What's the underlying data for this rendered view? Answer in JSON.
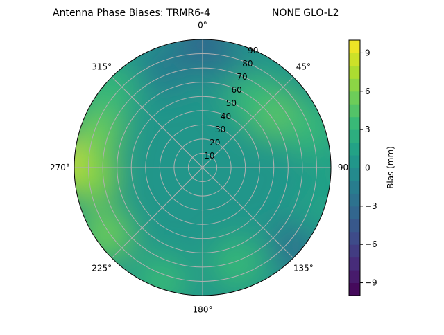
{
  "chart_data": {
    "type": "polar-contour",
    "title_left": "Antenna Phase Biases: TRMR6-4",
    "title_right": "NONE GLO-L2",
    "angular_ticks": [
      {
        "deg": 0,
        "label": "0°"
      },
      {
        "deg": 45,
        "label": "45°"
      },
      {
        "deg": 90,
        "label": "90°"
      },
      {
        "deg": 135,
        "label": "135°"
      },
      {
        "deg": 180,
        "label": "180°"
      },
      {
        "deg": 225,
        "label": "225°"
      },
      {
        "deg": 270,
        "label": "270°"
      },
      {
        "deg": 315,
        "label": "315°"
      }
    ],
    "angular_direction": "clockwise",
    "angular_zero": "north",
    "radial_ticks": [
      "10",
      "20",
      "30",
      "40",
      "50",
      "60",
      "70",
      "80",
      "90"
    ],
    "radial_range": [
      0,
      90
    ],
    "grid": true,
    "colormap": "viridis",
    "colorbar": {
      "label": "Bias (mm)",
      "range": [
        -10,
        10
      ],
      "level_step": 1,
      "ticks": [
        "−9",
        "−6",
        "−3",
        "0",
        "3",
        "6",
        "9"
      ],
      "tick_values": [
        -9,
        -6,
        -3,
        0,
        3,
        6,
        9
      ]
    },
    "background_value": 0.5,
    "features": [
      {
        "azimuth": 0,
        "zenith": 88,
        "value": -3.5
      },
      {
        "azimuth": 340,
        "zenith": 75,
        "value": -2
      },
      {
        "azimuth": 20,
        "zenith": 70,
        "value": -1.5
      },
      {
        "azimuth": 50,
        "zenith": 62,
        "value": 5.5
      },
      {
        "azimuth": 35,
        "zenith": 60,
        "value": 3.5
      },
      {
        "azimuth": 70,
        "zenith": 80,
        "value": 3
      },
      {
        "azimuth": 270,
        "zenith": 90,
        "value": 9.5
      },
      {
        "azimuth": 265,
        "zenith": 78,
        "value": 6.5
      },
      {
        "azimuth": 290,
        "zenith": 78,
        "value": 5
      },
      {
        "azimuth": 235,
        "zenith": 82,
        "value": 5
      },
      {
        "azimuth": 310,
        "zenith": 85,
        "value": 3
      },
      {
        "azimuth": 200,
        "zenith": 85,
        "value": 3
      },
      {
        "azimuth": 160,
        "zenith": 72,
        "value": 3
      },
      {
        "azimuth": 130,
        "zenith": 86,
        "value": -2.5
      },
      {
        "azimuth": 110,
        "zenith": 88,
        "value": 1.5
      },
      {
        "azimuth": 90,
        "zenith": 92,
        "value": 1
      }
    ]
  }
}
